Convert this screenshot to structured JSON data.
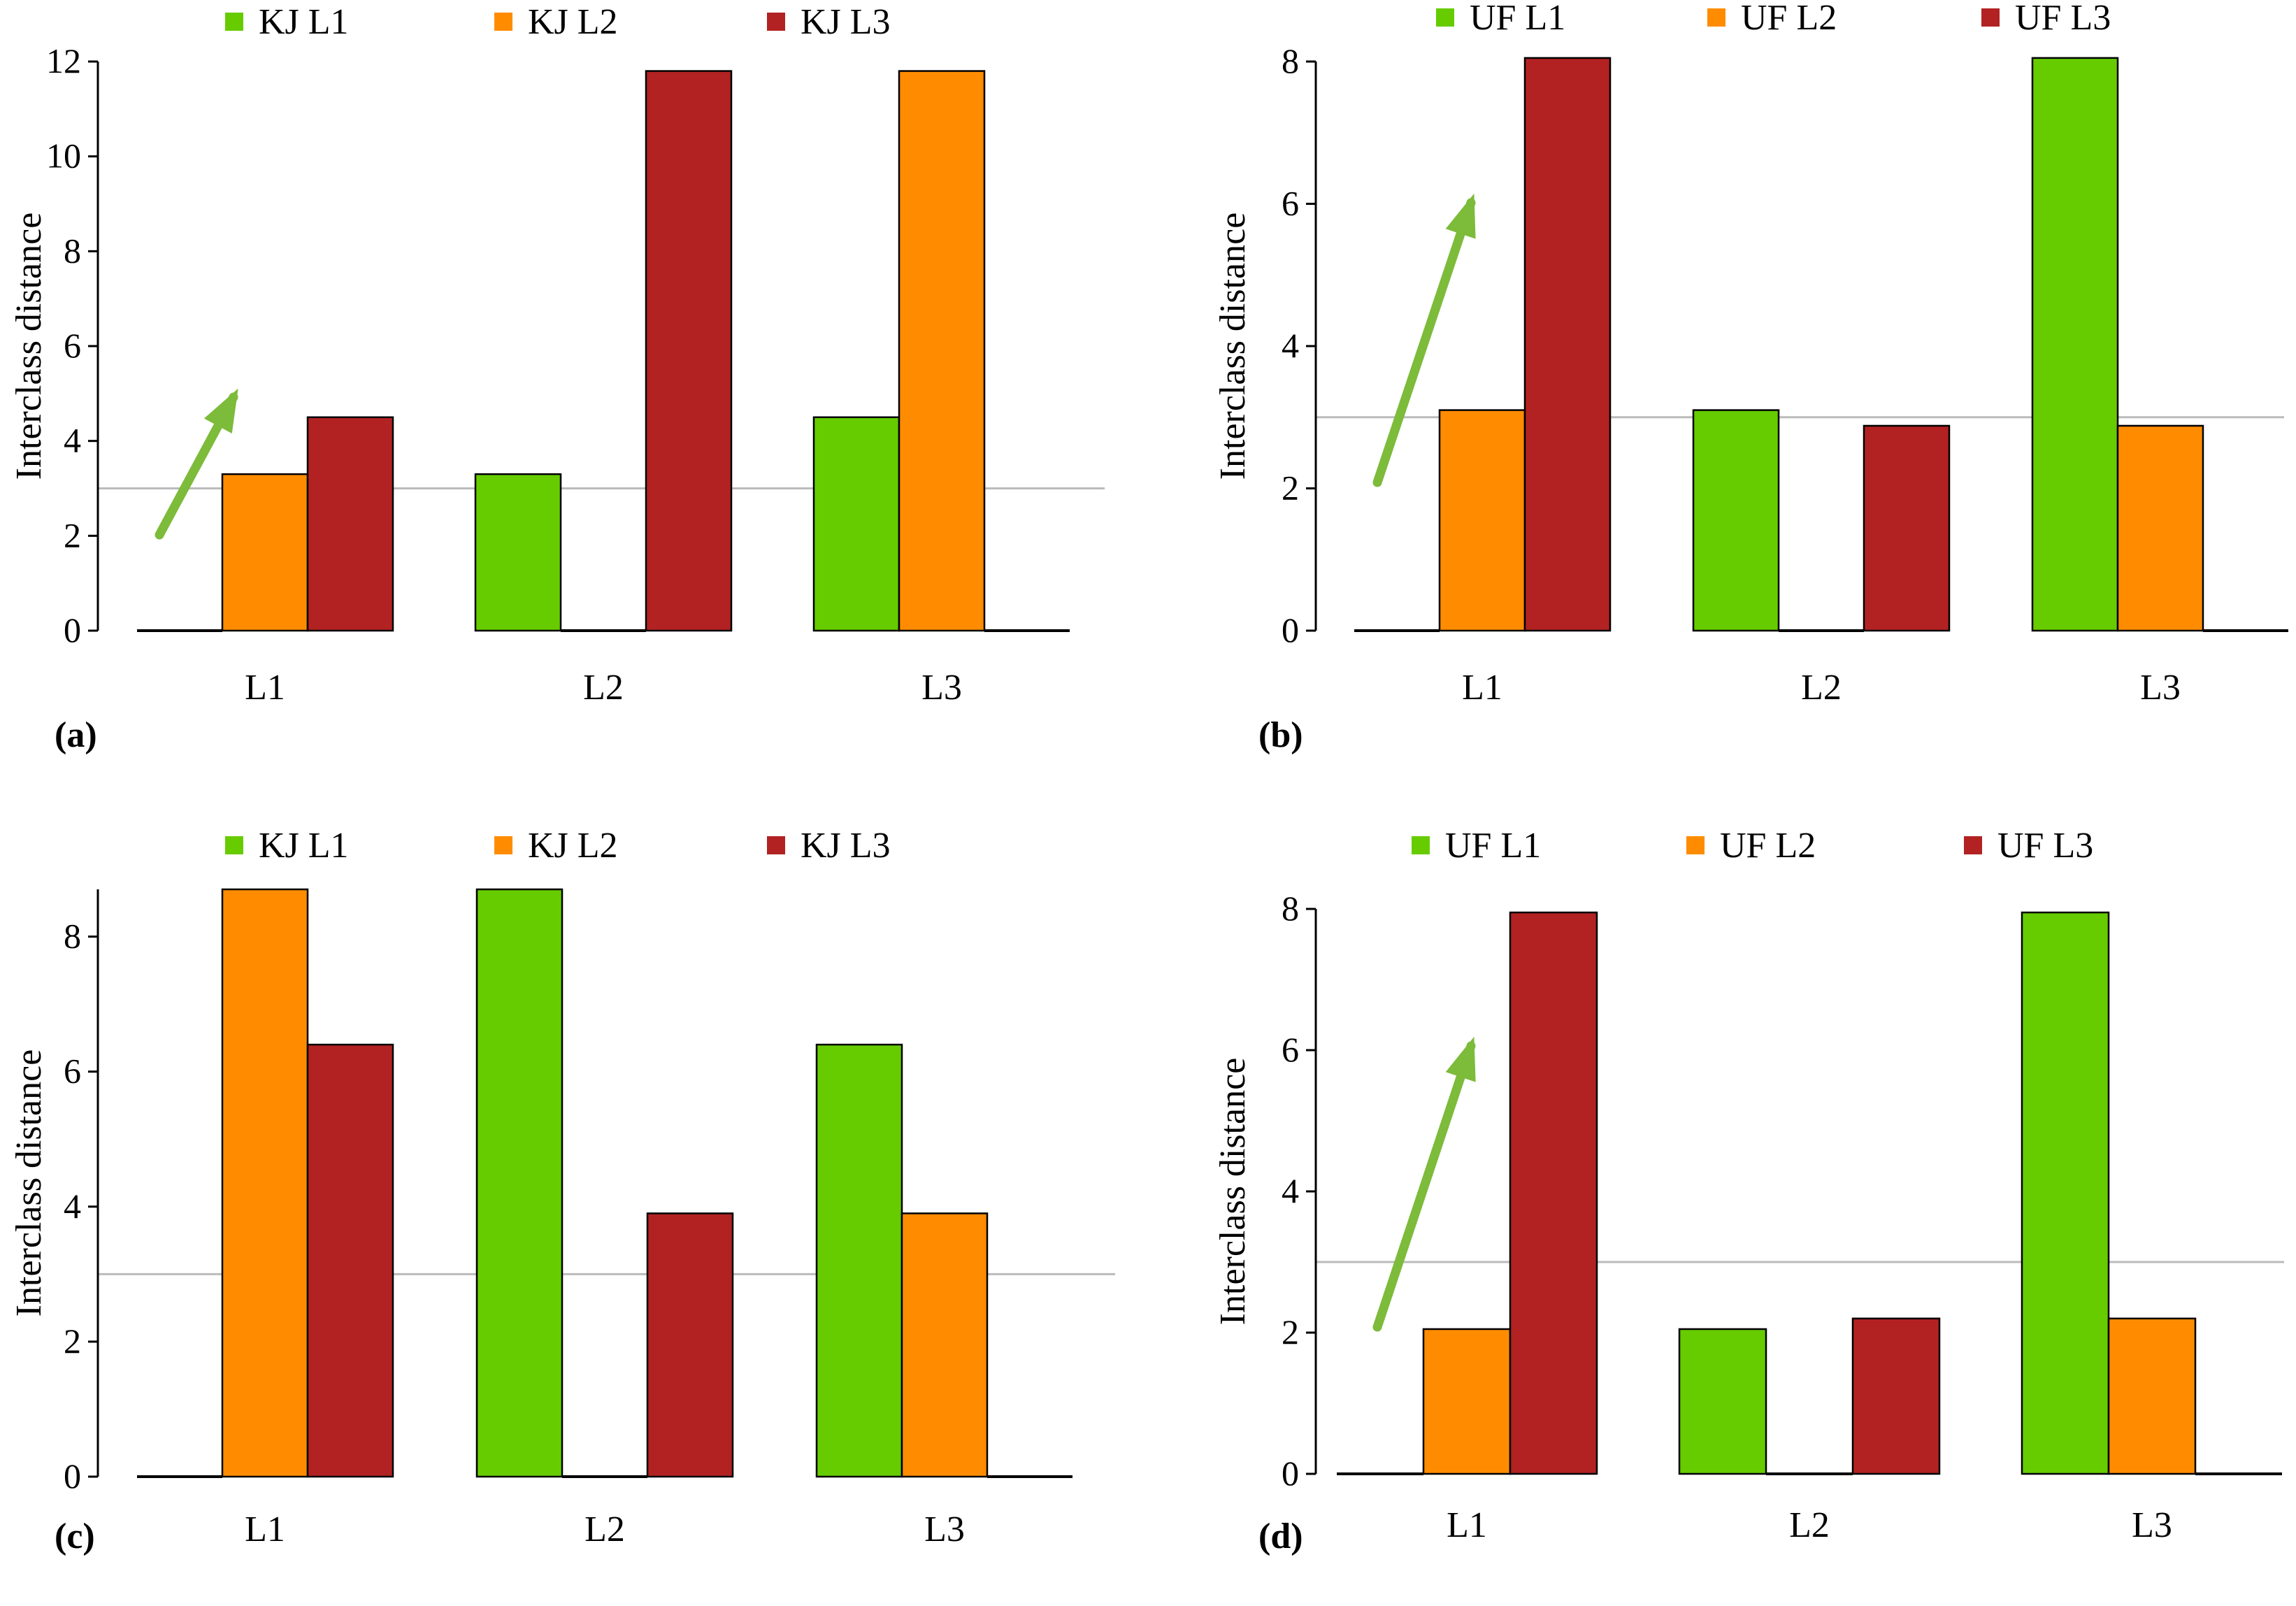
{
  "chart_data": [
    {
      "panel": "(a)",
      "type": "bar",
      "categories": [
        "L1",
        "L2",
        "L3"
      ],
      "series": [
        {
          "name": "KJ L1",
          "color": "#66cc00",
          "values": [
            0,
            3.3,
            4.5
          ]
        },
        {
          "name": "KJ L2",
          "color": "#ff8c00",
          "values": [
            3.3,
            0,
            11.8
          ]
        },
        {
          "name": "KJ L3",
          "color": "#b22222",
          "values": [
            4.5,
            11.8,
            0
          ]
        }
      ],
      "ylabel": "Interclass distance",
      "ylim": [
        0,
        12
      ],
      "yticks": [
        0,
        2,
        4,
        6,
        8,
        10,
        12
      ],
      "threshold": 3,
      "annotation": "green-arrow",
      "legend": "top"
    },
    {
      "panel": "(b)",
      "type": "bar",
      "categories": [
        "L1",
        "L2",
        "L3"
      ],
      "series": [
        {
          "name": "UF L1",
          "color": "#66cc00",
          "values": [
            0,
            3.1,
            8.05
          ]
        },
        {
          "name": "UF L2",
          "color": "#ff8c00",
          "values": [
            3.1,
            0,
            2.88
          ]
        },
        {
          "name": "UF L3",
          "color": "#b22222",
          "values": [
            8.05,
            2.88,
            0
          ]
        }
      ],
      "ylabel": "Interclass distance",
      "ylim": [
        0,
        8
      ],
      "yticks": [
        0,
        2,
        4,
        6,
        8
      ],
      "threshold": 3,
      "annotation": "green-arrow",
      "legend": "top"
    },
    {
      "panel": "(c)",
      "type": "bar",
      "categories": [
        "L1",
        "L2",
        "L3"
      ],
      "series": [
        {
          "name": "KJ L1",
          "color": "#66cc00",
          "values": [
            0,
            8.7,
            6.4
          ]
        },
        {
          "name": "KJ L2",
          "color": "#ff8c00",
          "values": [
            8.7,
            0,
            3.9
          ]
        },
        {
          "name": "KJ L3",
          "color": "#b22222",
          "values": [
            6.4,
            3.9,
            0
          ]
        }
      ],
      "ylabel": "Interclass distance",
      "ylim": [
        0,
        8.7
      ],
      "yticks": [
        0,
        2,
        4,
        6,
        8
      ],
      "threshold": 3,
      "annotation": "",
      "legend": "top"
    },
    {
      "panel": "(d)",
      "type": "bar",
      "categories": [
        "L1",
        "L2",
        "L3"
      ],
      "series": [
        {
          "name": "UF L1",
          "color": "#66cc00",
          "values": [
            0,
            2.05,
            7.95
          ]
        },
        {
          "name": "UF L2",
          "color": "#ff8c00",
          "values": [
            2.05,
            0,
            2.2
          ]
        },
        {
          "name": "UF L3",
          "color": "#b22222",
          "values": [
            7.95,
            2.2,
            0
          ]
        }
      ],
      "ylabel": "Interclass distance",
      "ylim": [
        0,
        8
      ],
      "yticks": [
        0,
        2,
        4,
        6,
        8
      ],
      "threshold": 3,
      "annotation": "green-arrow",
      "legend": "top"
    }
  ],
  "colors": {
    "axis": "#000000",
    "threshold_line": "#bbbbbb",
    "arrow": "#7dbb3a",
    "bar_stroke": "#000000"
  }
}
